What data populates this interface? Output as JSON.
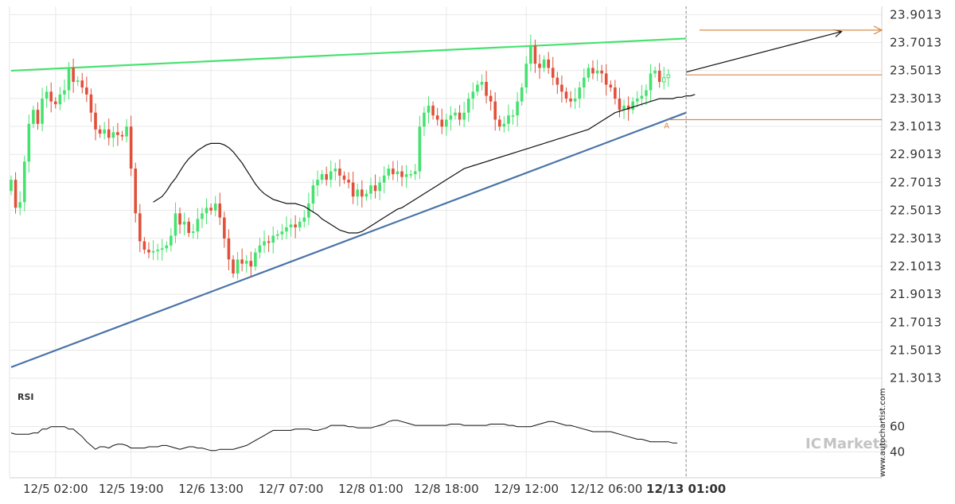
{
  "chart_data": {
    "type": "candlestick",
    "y_ticks": [
      "23.9013",
      "23.7013",
      "23.5013",
      "23.3013",
      "23.1013",
      "22.9013",
      "22.7013",
      "22.5013",
      "22.3013",
      "22.1013",
      "21.9013",
      "21.7013",
      "21.5013",
      "21.3013"
    ],
    "ylim": [
      21.22,
      23.96
    ],
    "x_ticks": [
      {
        "label": "12/5 02:00",
        "bar": 10
      },
      {
        "label": "12/5 19:00",
        "bar": 27
      },
      {
        "label": "12/6 13:00",
        "bar": 45
      },
      {
        "label": "12/7 07:00",
        "bar": 63
      },
      {
        "label": "12/8 01:00",
        "bar": 81
      },
      {
        "label": "12/8 18:00",
        "bar": 98
      },
      {
        "label": "12/9 12:00",
        "bar": 116
      },
      {
        "label": "12/12 06:00",
        "bar": 134
      },
      {
        "label": "12/13 01:00",
        "bar": 152,
        "bold": true
      }
    ],
    "closes": [
      22.72,
      22.52,
      22.56,
      22.85,
      23.12,
      23.22,
      23.12,
      23.3,
      23.35,
      23.28,
      23.26,
      23.33,
      23.36,
      23.52,
      23.42,
      23.43,
      23.38,
      23.33,
      23.2,
      23.08,
      23.05,
      23.08,
      23.02,
      23.06,
      23.04,
      23.03,
      23.1,
      22.8,
      22.48,
      22.28,
      22.22,
      22.2,
      22.21,
      22.22,
      22.23,
      22.25,
      22.32,
      22.48,
      22.4,
      22.42,
      22.34,
      22.35,
      22.44,
      22.48,
      22.52,
      22.5,
      22.55,
      22.45,
      22.3,
      22.15,
      22.05,
      22.15,
      22.12,
      22.14,
      22.1,
      22.2,
      22.25,
      22.28,
      22.27,
      22.32,
      22.33,
      22.35,
      22.38,
      22.4,
      22.38,
      22.42,
      22.45,
      22.55,
      22.68,
      22.72,
      22.76,
      22.72,
      22.78,
      22.8,
      22.75,
      22.72,
      22.7,
      22.6,
      22.65,
      22.6,
      22.62,
      22.68,
      22.64,
      22.7,
      22.75,
      22.8,
      22.76,
      22.78,
      22.74,
      22.76,
      22.76,
      22.78,
      23.1,
      23.2,
      23.25,
      23.18,
      23.15,
      23.1,
      23.15,
      23.18,
      23.2,
      23.15,
      23.2,
      23.3,
      23.35,
      23.4,
      23.42,
      23.32,
      23.28,
      23.15,
      23.1,
      23.12,
      23.18,
      23.18,
      23.28,
      23.38,
      23.55,
      23.68,
      23.55,
      23.52,
      23.58,
      23.52,
      23.45,
      23.4,
      23.35,
      23.3,
      23.28,
      23.3,
      23.38,
      23.45,
      23.52,
      23.48,
      23.5,
      23.48,
      23.4,
      23.38,
      23.3,
      23.22,
      23.25,
      23.22,
      23.28,
      23.3,
      23.32,
      23.36,
      23.48,
      23.5,
      23.42,
      23.45,
      23.47
    ],
    "ma": [
      22.56,
      22.58,
      22.6,
      22.64,
      22.69,
      22.73,
      22.78,
      22.83,
      22.87,
      22.9,
      22.93,
      22.95,
      22.97,
      22.98,
      22.98,
      22.98,
      22.97,
      22.95,
      22.92,
      22.88,
      22.84,
      22.79,
      22.74,
      22.69,
      22.65,
      22.62,
      22.6,
      22.58,
      22.57,
      22.56,
      22.55,
      22.55,
      22.55,
      22.54,
      22.53,
      22.51,
      22.49,
      22.47,
      22.44,
      22.42,
      22.4,
      22.38,
      22.36,
      22.35,
      22.34,
      22.34,
      22.34,
      22.35,
      22.37,
      22.39,
      22.41,
      22.43,
      22.45,
      22.47,
      22.49,
      22.51,
      22.52,
      22.54,
      22.56,
      22.58,
      22.6,
      22.62,
      22.64,
      22.66,
      22.68,
      22.7,
      22.72,
      22.74,
      22.76,
      22.78,
      22.8,
      22.81,
      22.82,
      22.83,
      22.84,
      22.85,
      22.86,
      22.87,
      22.88,
      22.89,
      22.9,
      22.91,
      22.92,
      22.93,
      22.94,
      22.95,
      22.96,
      22.97,
      22.98,
      22.99,
      23.0,
      23.01,
      23.02,
      23.03,
      23.04,
      23.05,
      23.06,
      23.07,
      23.08,
      23.1,
      23.12,
      23.14,
      23.16,
      23.18,
      23.2,
      23.21,
      23.22,
      23.23,
      23.24,
      23.25,
      23.26,
      23.27,
      23.28,
      23.29,
      23.3,
      23.3,
      23.3,
      23.3,
      23.31,
      23.31,
      23.32,
      23.32,
      23.33
    ],
    "ma_start_bar": 32,
    "rsi": [
      55,
      54,
      54,
      54,
      54,
      55,
      55,
      58,
      58,
      60,
      60,
      60,
      60,
      58,
      58,
      55,
      52,
      48,
      45,
      42,
      44,
      44,
      43,
      45,
      46,
      46,
      45,
      43,
      43,
      43,
      43,
      44,
      44,
      44,
      45,
      45,
      44,
      43,
      42,
      43,
      44,
      44,
      43,
      43,
      42,
      41,
      41,
      42,
      42,
      42,
      42,
      43,
      44,
      45,
      47,
      49,
      51,
      53,
      55,
      57,
      57,
      57,
      57,
      57,
      58,
      58,
      58,
      58,
      57,
      57,
      58,
      59,
      61,
      61,
      61,
      61,
      60,
      60,
      59,
      59,
      59,
      59,
      60,
      61,
      62,
      64,
      65,
      65,
      64,
      63,
      62,
      61,
      61,
      61,
      61,
      61,
      61,
      61,
      61,
      62,
      62,
      62,
      61,
      61,
      61,
      61,
      61,
      61,
      62,
      62,
      62,
      62,
      61,
      61,
      60,
      60,
      60,
      60,
      61,
      62,
      63,
      64,
      64,
      63,
      62,
      61,
      61,
      60,
      59,
      58,
      57,
      56,
      56,
      56,
      56,
      56,
      55,
      54,
      53,
      52,
      51,
      50,
      50,
      49,
      48,
      48,
      48,
      48,
      48,
      47,
      47
    ],
    "lines": [
      {
        "name": "resistance",
        "from": [
          0,
          23.5
        ],
        "to": [
          152,
          23.73
        ],
        "color": "#46e26f"
      },
      {
        "name": "support",
        "from": [
          0,
          21.38
        ],
        "to": [
          152,
          23.2
        ],
        "color": "#4a73a8"
      },
      {
        "name": "projection",
        "from": [
          152,
          23.49
        ],
        "to": [
          187,
          23.78
        ],
        "color": "#111111"
      }
    ],
    "levels": [
      {
        "value": 23.79,
        "from": 155,
        "color": "#d88a4a"
      },
      {
        "value": 23.47,
        "from": 152,
        "color": "#d88a4a"
      },
      {
        "value": 23.15,
        "from": 148,
        "color": "#d88a4a"
      }
    ],
    "vertical_marker_bar": 152,
    "annotation": {
      "text": "A",
      "bar": 147,
      "value": 23.11
    },
    "rsi_label": "RSI",
    "rsi_ticks": [
      "60",
      "40"
    ],
    "colors": {
      "up": "#46e26f",
      "down": "#e0503a",
      "ma": "#111111",
      "grid": "#e8e8e8"
    }
  },
  "branding": {
    "prefix": "IC",
    "name": "Markets"
  },
  "watermark": "www.autochartist.com"
}
